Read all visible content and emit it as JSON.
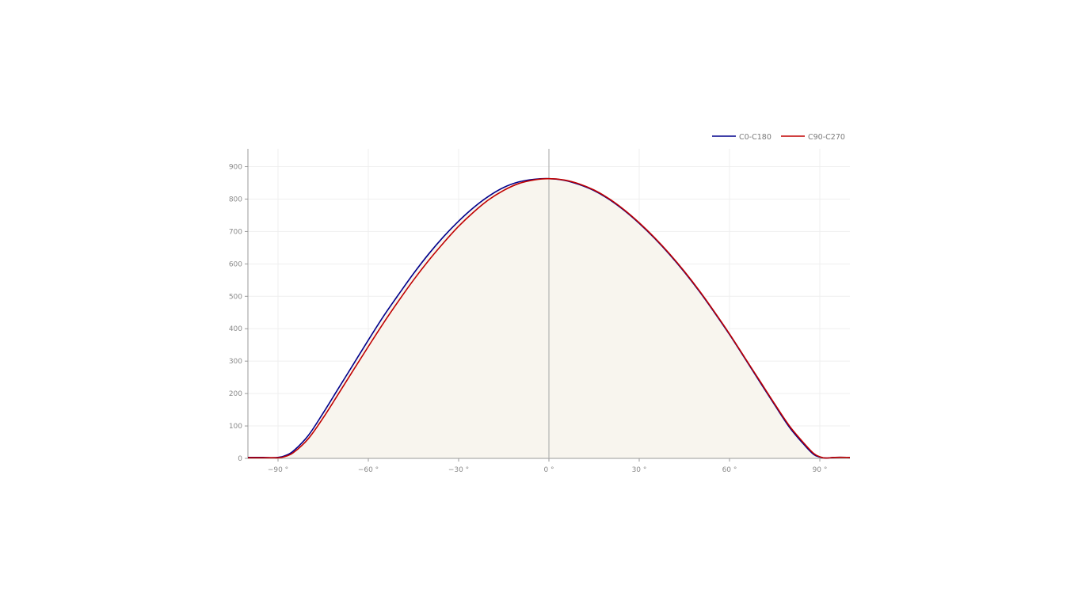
{
  "chart_data": {
    "type": "line",
    "title": "",
    "xlabel": "",
    "ylabel": "",
    "xlim": [
      -100,
      100
    ],
    "ylim": [
      0,
      955
    ],
    "x_ticks": [
      -90,
      -60,
      -30,
      0,
      30,
      60,
      90
    ],
    "x_tick_labels": [
      "−90 °",
      "−60 °",
      "−30 °",
      "0 °",
      "30 °",
      "60 °",
      "90 °"
    ],
    "y_ticks": [
      0,
      100,
      200,
      300,
      400,
      500,
      600,
      700,
      800,
      900
    ],
    "y_tick_labels": [
      "0",
      "100",
      "200",
      "300",
      "400",
      "500",
      "600",
      "700",
      "800",
      "900"
    ],
    "grid": true,
    "legend_position": "top-right",
    "fill_color": "#f8f5ee",
    "series": [
      {
        "name": "C0-C180",
        "color": "#00008b",
        "points": [
          [
            -100,
            3
          ],
          [
            -95,
            3
          ],
          [
            -92,
            2
          ],
          [
            -90,
            3
          ],
          [
            -88,
            7
          ],
          [
            -85,
            22
          ],
          [
            -80,
            70
          ],
          [
            -75,
            140
          ],
          [
            -70,
            215
          ],
          [
            -65,
            290
          ],
          [
            -60,
            365
          ],
          [
            -55,
            438
          ],
          [
            -50,
            505
          ],
          [
            -45,
            570
          ],
          [
            -40,
            630
          ],
          [
            -35,
            684
          ],
          [
            -30,
            732
          ],
          [
            -25,
            774
          ],
          [
            -20,
            809
          ],
          [
            -15,
            836
          ],
          [
            -10,
            853
          ],
          [
            -5,
            861
          ],
          [
            0,
            863
          ],
          [
            5,
            858
          ],
          [
            10,
            845
          ],
          [
            15,
            826
          ],
          [
            20,
            799
          ],
          [
            25,
            765
          ],
          [
            30,
            725
          ],
          [
            35,
            680
          ],
          [
            40,
            630
          ],
          [
            45,
            575
          ],
          [
            50,
            515
          ],
          [
            55,
            450
          ],
          [
            60,
            382
          ],
          [
            65,
            310
          ],
          [
            70,
            237
          ],
          [
            75,
            165
          ],
          [
            80,
            95
          ],
          [
            85,
            40
          ],
          [
            88,
            12
          ],
          [
            90,
            4
          ],
          [
            92,
            1
          ],
          [
            95,
            3
          ],
          [
            100,
            3
          ]
        ]
      },
      {
        "name": "C90-C270",
        "color": "#c00000",
        "points": [
          [
            -100,
            2
          ],
          [
            -95,
            2
          ],
          [
            -92,
            2
          ],
          [
            -90,
            2
          ],
          [
            -88,
            5
          ],
          [
            -85,
            17
          ],
          [
            -80,
            60
          ],
          [
            -75,
            125
          ],
          [
            -70,
            198
          ],
          [
            -65,
            272
          ],
          [
            -60,
            345
          ],
          [
            -55,
            417
          ],
          [
            -50,
            485
          ],
          [
            -45,
            550
          ],
          [
            -40,
            610
          ],
          [
            -35,
            665
          ],
          [
            -30,
            716
          ],
          [
            -25,
            760
          ],
          [
            -20,
            798
          ],
          [
            -15,
            827
          ],
          [
            -10,
            848
          ],
          [
            -5,
            859
          ],
          [
            0,
            863
          ],
          [
            5,
            859
          ],
          [
            10,
            847
          ],
          [
            15,
            828
          ],
          [
            20,
            801
          ],
          [
            25,
            767
          ],
          [
            30,
            727
          ],
          [
            35,
            682
          ],
          [
            40,
            632
          ],
          [
            45,
            577
          ],
          [
            50,
            517
          ],
          [
            55,
            452
          ],
          [
            60,
            384
          ],
          [
            65,
            312
          ],
          [
            70,
            240
          ],
          [
            75,
            168
          ],
          [
            80,
            99
          ],
          [
            85,
            44
          ],
          [
            88,
            15
          ],
          [
            90,
            5
          ],
          [
            92,
            1
          ],
          [
            95,
            3
          ],
          [
            100,
            3
          ]
        ]
      }
    ]
  }
}
